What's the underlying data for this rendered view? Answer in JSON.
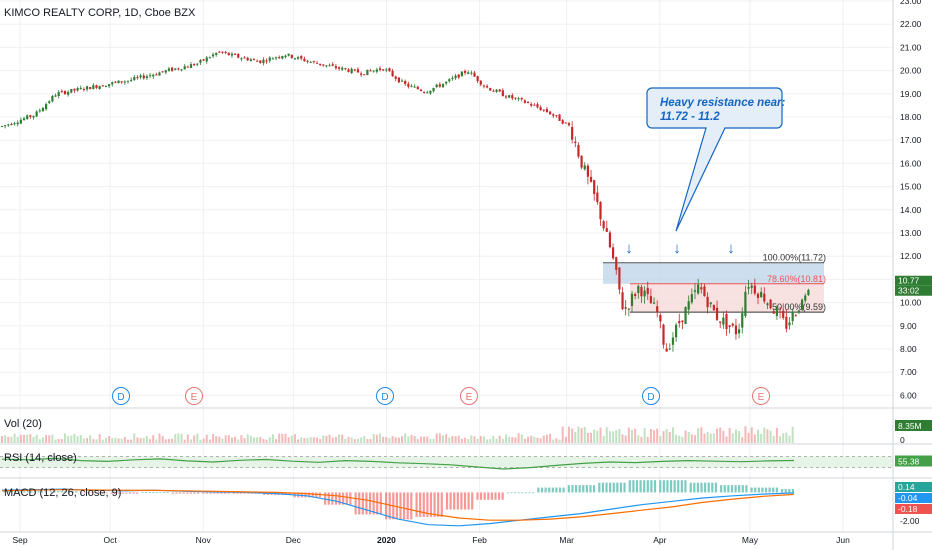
{
  "header": {
    "symbol_title": "KIMCO REALTY CORP, 1D, Cboe BZX"
  },
  "colors": {
    "up": "#26a69a",
    "down": "#ef5350",
    "candle_up": "#2e7d32",
    "candle_down": "#c62828",
    "grid": "#eef0f3",
    "axis_text": "#131722",
    "fib_blue_fill": "#bcd4ea",
    "fib_red_fill": "#f6d9d9",
    "rsi_band": "#e6f4e7",
    "rsi_line": "#43a047",
    "macd_line": "#2196f3",
    "signal_line": "#ff6d00",
    "accent": "#1565c0"
  },
  "price_axis": {
    "ticks": [
      "23.00",
      "22.00",
      "21.00",
      "20.00",
      "19.00",
      "18.00",
      "17.00",
      "16.00",
      "15.00",
      "14.00",
      "13.00",
      "12.00",
      "11.00",
      "10.00",
      "9.00",
      "8.00",
      "7.00",
      "6.00"
    ],
    "current_price": "10.77",
    "countdown": "33:02"
  },
  "time_axis": {
    "labels": [
      "Sep",
      "Oct",
      "Nov",
      "Dec",
      "2020",
      "Feb",
      "Mar",
      "Apr",
      "May",
      "Jun"
    ]
  },
  "events": [
    {
      "label": "D",
      "kind": "dividend"
    },
    {
      "label": "E",
      "kind": "earnings"
    },
    {
      "label": "D",
      "kind": "dividend"
    },
    {
      "label": "E",
      "kind": "earnings"
    },
    {
      "label": "D",
      "kind": "dividend"
    },
    {
      "label": "E",
      "kind": "earnings"
    }
  ],
  "fib_levels": [
    {
      "label": "100.00%(11.72)",
      "price": 11.72
    },
    {
      "label": "78.60%(10.81)",
      "price": 10.81
    },
    {
      "label": "50.00%(9.59)",
      "price": 9.59
    }
  ],
  "callout": {
    "line1": "Heavy resistance near:",
    "line2": "11.72 - 11.2"
  },
  "arrows": {
    "glyph": "↓",
    "count": 3
  },
  "volume": {
    "title": "Vol (20)",
    "value_badge": "8.35M",
    "zero": "0"
  },
  "rsi": {
    "title": "RSI (14, close)",
    "value_badge": "55.38",
    "upper": 70,
    "lower": 30,
    "last": 55.38
  },
  "macd": {
    "title": "MACD (12, 26, close, 9)",
    "badge_hist": "0.14",
    "badge_macd": "-0.04",
    "badge_signal": "-0.18",
    "tick_label": "-2.00"
  },
  "chart_data": {
    "type": "candlestick",
    "title": "KIMCO REALTY CORP, 1D, Cboe BZX",
    "ylim": [
      5.3,
      23.2
    ],
    "x_months": [
      "Sep",
      "Oct",
      "Nov",
      "Dec",
      "2020",
      "Feb",
      "Mar",
      "Apr",
      "May",
      "Jun"
    ],
    "close_path": [
      [
        "2019-08-26",
        17.6
      ],
      [
        "2019-09-06",
        18.1
      ],
      [
        "2019-09-13",
        19.0
      ],
      [
        "2019-09-25",
        19.3
      ],
      [
        "2019-10-08",
        19.6
      ],
      [
        "2019-10-20",
        20.0
      ],
      [
        "2019-10-30",
        20.3
      ],
      [
        "2019-11-06",
        20.8
      ],
      [
        "2019-11-12",
        20.6
      ],
      [
        "2019-11-20",
        20.4
      ],
      [
        "2019-11-28",
        20.7
      ],
      [
        "2019-12-06",
        20.4
      ],
      [
        "2019-12-16",
        20.1
      ],
      [
        "2019-12-24",
        19.9
      ],
      [
        "2019-12-31",
        20.1
      ],
      [
        "2020-01-07",
        19.4
      ],
      [
        "2020-01-14",
        19.1
      ],
      [
        "2020-01-21",
        19.5
      ],
      [
        "2020-01-28",
        20.0
      ],
      [
        "2020-02-03",
        19.3
      ],
      [
        "2020-02-10",
        18.9
      ],
      [
        "2020-02-17",
        18.6
      ],
      [
        "2020-02-24",
        18.2
      ],
      [
        "2020-03-02",
        17.6
      ],
      [
        "2020-03-06",
        16.0
      ],
      [
        "2020-03-11",
        14.3
      ],
      [
        "2020-03-16",
        12.1
      ],
      [
        "2020-03-20",
        9.6
      ],
      [
        "2020-03-25",
        10.7
      ],
      [
        "2020-03-31",
        9.6
      ],
      [
        "2020-04-03",
        7.9
      ],
      [
        "2020-04-08",
        9.3
      ],
      [
        "2020-04-14",
        10.7
      ],
      [
        "2020-04-20",
        9.4
      ],
      [
        "2020-04-27",
        8.7
      ],
      [
        "2020-04-30",
        10.9
      ],
      [
        "2020-05-06",
        10.2
      ],
      [
        "2020-05-13",
        9.0
      ],
      [
        "2020-05-18",
        10.0
      ],
      [
        "2020-05-21",
        10.77
      ]
    ],
    "rsi_path": [
      60,
      58,
      63,
      55,
      52,
      58,
      61,
      54,
      50,
      56,
      59,
      53,
      49,
      55,
      52,
      47,
      44,
      40,
      32,
      25,
      30,
      38,
      45,
      50,
      48,
      52,
      55,
      53,
      51,
      54,
      55.38
    ],
    "macd_path": [
      0.2,
      0.25,
      0.3,
      0.2,
      0.15,
      0.2,
      0.1,
      0.05,
      0.0,
      -0.1,
      -0.3,
      -0.8,
      -1.6,
      -2.4,
      -2.9,
      -3.0,
      -2.8,
      -2.5,
      -2.2,
      -1.9,
      -1.5,
      -1.1,
      -0.8,
      -0.5,
      -0.3,
      -0.15,
      -0.04
    ],
    "signal_path": [
      0.15,
      0.2,
      0.25,
      0.22,
      0.2,
      0.18,
      0.15,
      0.1,
      0.05,
      0.0,
      -0.1,
      -0.3,
      -0.7,
      -1.3,
      -1.9,
      -2.3,
      -2.5,
      -2.5,
      -2.4,
      -2.2,
      -1.9,
      -1.6,
      -1.3,
      -0.9,
      -0.6,
      -0.35,
      -0.18
    ]
  }
}
